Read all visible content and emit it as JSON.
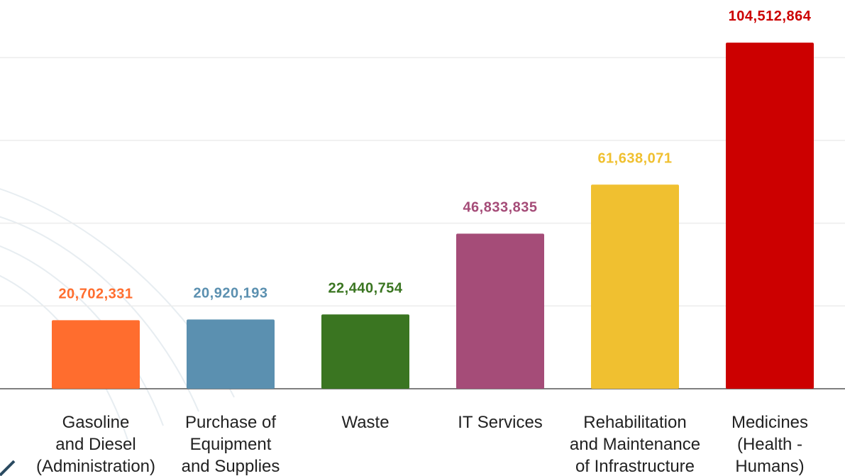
{
  "chart_data": {
    "type": "bar",
    "categories": [
      "Gasoline\nand Diesel\n(Administration)",
      "Purchase of\nEquipment\nand Supplies",
      "Waste",
      "IT Services",
      "Rehabilitation\nand Maintenance\nof Infrastructure",
      "Medicines\n(Health -\nHumans)"
    ],
    "values": [
      20702331,
      20920193,
      22440754,
      46833835,
      61638071,
      104512864
    ],
    "value_labels": [
      "20,702,331",
      "20,920,193",
      "22,440,754",
      "46,833,835",
      "61,638,071",
      "104,512,864"
    ],
    "colors": [
      "#ff6d2e",
      "#5b90b0",
      "#3a7521",
      "#a54c78",
      "#f0c030",
      "#cc0000"
    ],
    "ylim": [
      0,
      117400000
    ],
    "yticks": [
      0,
      25000000,
      50000000,
      75000000,
      100000000
    ],
    "grid": true
  }
}
